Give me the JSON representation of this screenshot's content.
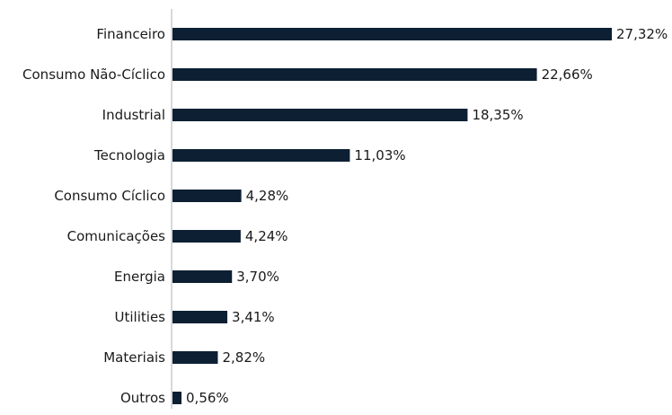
{
  "chart_data": {
    "type": "bar",
    "orientation": "horizontal",
    "categories": [
      "Financeiro",
      "Consumo Não-Cíclico",
      "Industrial",
      "Tecnologia",
      "Consumo Cíclico",
      "Comunicações",
      "Energia",
      "Utilities",
      "Materiais",
      "Outros"
    ],
    "values": [
      27.32,
      22.66,
      18.35,
      11.03,
      4.28,
      4.24,
      3.7,
      3.41,
      2.82,
      0.56
    ],
    "value_labels": [
      "27,32%",
      "22,66%",
      "18,35%",
      "11,03%",
      "4,28%",
      "4,24%",
      "3,70%",
      "3,41%",
      "2,82%",
      "0,56%"
    ],
    "title": "",
    "xlabel": "",
    "ylabel": "",
    "xlim": [
      0,
      27.32
    ],
    "grid": false,
    "legend": "none",
    "bar_color": "#0d1f33",
    "axis_color": "#b3b3b3"
  }
}
